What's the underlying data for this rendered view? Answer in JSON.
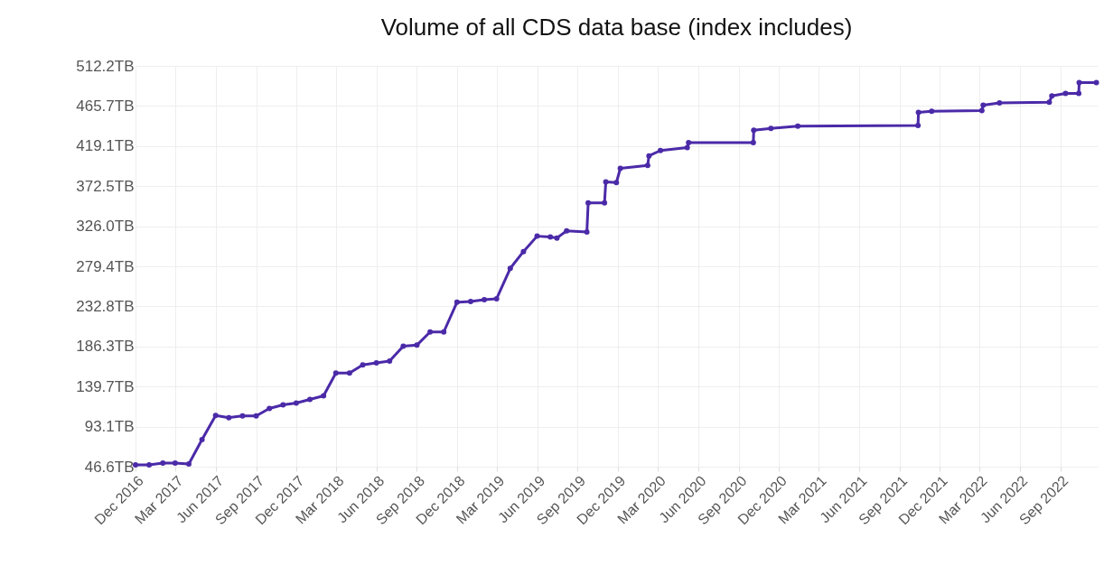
{
  "chart_data": {
    "type": "line",
    "title": "Volume of all CDS data base (index includes)",
    "x": [
      "2016-12-01",
      "2017-01-01",
      "2017-02-01",
      "2017-03-01",
      "2017-04-01",
      "2017-05-01",
      "2017-06-01",
      "2017-07-01",
      "2017-08-01",
      "2017-09-01",
      "2017-10-01",
      "2017-11-01",
      "2017-12-01",
      "2018-01-01",
      "2018-02-01",
      "2018-03-01",
      "2018-04-01",
      "2018-05-01",
      "2018-06-01",
      "2018-07-01",
      "2018-08-01",
      "2018-09-01",
      "2018-10-01",
      "2018-11-01",
      "2018-12-01",
      "2019-01-01",
      "2019-02-01",
      "2019-03-01",
      "2019-04-01",
      "2019-05-01",
      "2019-06-01",
      "2019-07-01",
      "2019-07-16",
      "2019-08-07",
      "2019-09-22",
      "2019-09-25",
      "2019-11-01",
      "2019-11-04",
      "2019-11-28",
      "2019-12-07",
      "2020-02-07",
      "2020-02-10",
      "2020-03-07",
      "2020-05-07",
      "2020-05-10",
      "2020-10-04",
      "2020-10-05",
      "2020-11-13",
      "2021-01-13",
      "2021-10-13",
      "2021-10-14",
      "2021-11-13",
      "2022-03-07",
      "2022-03-10",
      "2022-04-16",
      "2022-08-07",
      "2022-08-13",
      "2022-09-13",
      "2022-10-13",
      "2022-10-14",
      "2022-11-22"
    ],
    "series": [
      {
        "color": "#4b2aa8",
        "values": [
          48.7,
          48.7,
          50.8,
          50.8,
          49.7,
          78,
          106.0,
          103.6,
          105.6,
          105.6,
          114.3,
          118.5,
          120.6,
          124.7,
          128.9,
          155.4,
          155.4,
          164.9,
          167.1,
          169.2,
          186.6,
          187.8,
          203.1,
          203.1,
          237.6,
          238.5,
          240.6,
          241.7,
          277.0,
          296.5,
          314.4,
          313.5,
          312.3,
          320.5,
          319.3,
          353.0,
          353.0,
          377.4,
          376.6,
          393.2,
          396.5,
          407.7,
          413.9,
          417.2,
          423.1,
          423.1,
          437.5,
          439.6,
          442.2,
          443.0,
          458.3,
          459.6,
          460.4,
          466.6,
          469.1,
          469.9,
          477.4,
          480.3,
          480.3,
          492.8,
          492.8
        ]
      }
    ],
    "xlim": [
      "2016-12-01",
      "2022-11-25"
    ],
    "xticks": [
      {
        "value": "2016-12",
        "label": "Dec 2016"
      },
      {
        "value": "2017-03",
        "label": "Mar 2017"
      },
      {
        "value": "2017-06",
        "label": "Jun 2017"
      },
      {
        "value": "2017-09",
        "label": "Sep 2017"
      },
      {
        "value": "2017-12",
        "label": "Dec 2017"
      },
      {
        "value": "2018-03",
        "label": "Mar 2018"
      },
      {
        "value": "2018-06",
        "label": "Jun 2018"
      },
      {
        "value": "2018-09",
        "label": "Sep 2018"
      },
      {
        "value": "2018-12",
        "label": "Dec 2018"
      },
      {
        "value": "2019-03",
        "label": "Mar 2019"
      },
      {
        "value": "2019-06",
        "label": "Jun 2019"
      },
      {
        "value": "2019-09",
        "label": "Sep 2019"
      },
      {
        "value": "2019-12",
        "label": "Dec 2019"
      },
      {
        "value": "2020-03",
        "label": "Mar 2020"
      },
      {
        "value": "2020-06",
        "label": "Jun 2020"
      },
      {
        "value": "2020-09",
        "label": "Sep 2020"
      },
      {
        "value": "2020-12",
        "label": "Dec 2020"
      },
      {
        "value": "2021-03",
        "label": "Mar 2021"
      },
      {
        "value": "2021-06",
        "label": "Jun 2021"
      },
      {
        "value": "2021-09",
        "label": "Sep 2021"
      },
      {
        "value": "2021-12",
        "label": "Dec 2021"
      },
      {
        "value": "2022-03",
        "label": "Mar 2022"
      },
      {
        "value": "2022-06",
        "label": "Jun 2022"
      },
      {
        "value": "2022-09",
        "label": "Sep 2022"
      }
    ],
    "ylim": [
      46.6,
      512.2
    ],
    "yticks": [
      {
        "value": 46.6,
        "label": "46.6TB"
      },
      {
        "value": 93.1,
        "label": "93.1TB"
      },
      {
        "value": 139.7,
        "label": "139.7TB"
      },
      {
        "value": 186.3,
        "label": "186.3TB"
      },
      {
        "value": 232.8,
        "label": "232.8TB"
      },
      {
        "value": 279.4,
        "label": "279.4TB"
      },
      {
        "value": 326.0,
        "label": "326.0TB"
      },
      {
        "value": 372.5,
        "label": "372.5TB"
      },
      {
        "value": 419.1,
        "label": "419.1TB"
      },
      {
        "value": 465.7,
        "label": "465.7TB"
      },
      {
        "value": 512.2,
        "label": "512.2TB"
      }
    ],
    "grid": true,
    "marker": "circle",
    "line_style": "solid"
  }
}
